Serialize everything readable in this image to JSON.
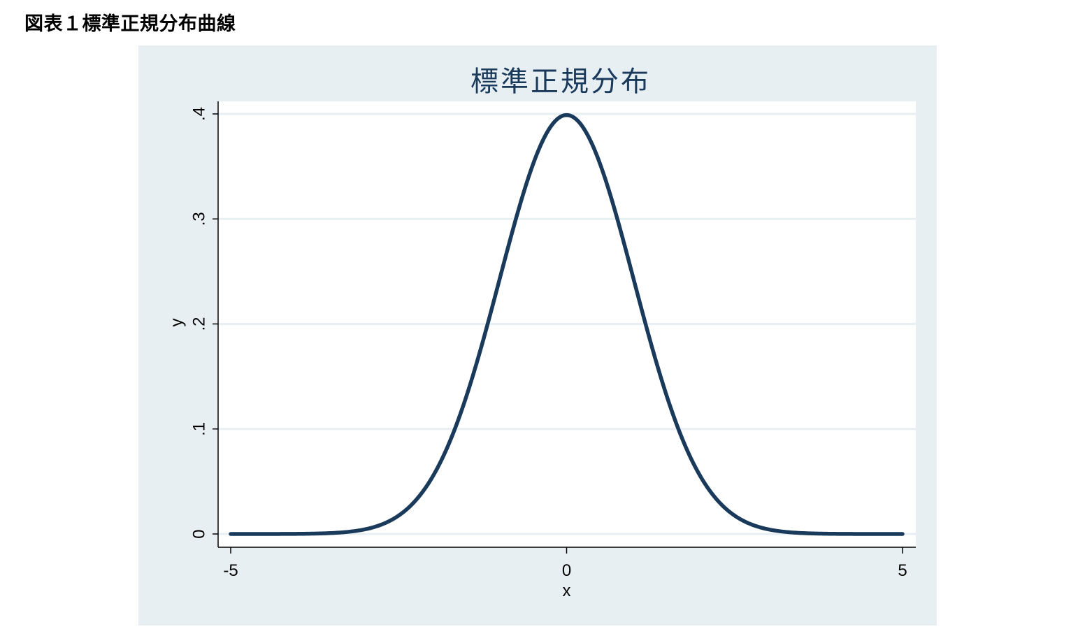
{
  "figure_caption": "図表１標準正規分布曲線",
  "chart_data": {
    "type": "line",
    "title": "標準正規分布",
    "xlabel": "x",
    "ylabel": "y",
    "xlim": [
      -5,
      5
    ],
    "ylim": [
      0,
      0.4
    ],
    "x_ticks": [
      -5,
      0,
      5
    ],
    "x_tick_labels": [
      "-5",
      "0",
      "5"
    ],
    "y_ticks": [
      0,
      0.1,
      0.2,
      0.3,
      0.4
    ],
    "y_tick_labels": [
      "0",
      ".1",
      ".2",
      ".3",
      ".4"
    ],
    "grid": "horizontal",
    "legend": "none",
    "series": [
      {
        "x": [
          -5,
          -4.5,
          -4,
          -3.5,
          -3,
          -2.5,
          -2,
          -1.5,
          -1,
          -0.5,
          0,
          0.5,
          1,
          1.5,
          2,
          2.5,
          3,
          3.5,
          4,
          4.5,
          5
        ],
        "y": [
          1.5e-06,
          1.6e-05,
          0.000134,
          0.000873,
          0.004432,
          0.017528,
          0.053991,
          0.129518,
          0.241971,
          0.352065,
          0.398942,
          0.352065,
          0.241971,
          0.129518,
          0.053991,
          0.017528,
          0.004432,
          0.000873,
          0.000134,
          1.6e-05,
          1.5e-06
        ]
      }
    ],
    "colors": {
      "outer_background": "#e8eff3",
      "plot_background": "#ffffff",
      "line": "#1a3a5c",
      "grid": "#e8eff3",
      "axis": "#000000",
      "title": "#1a3a5c"
    }
  }
}
